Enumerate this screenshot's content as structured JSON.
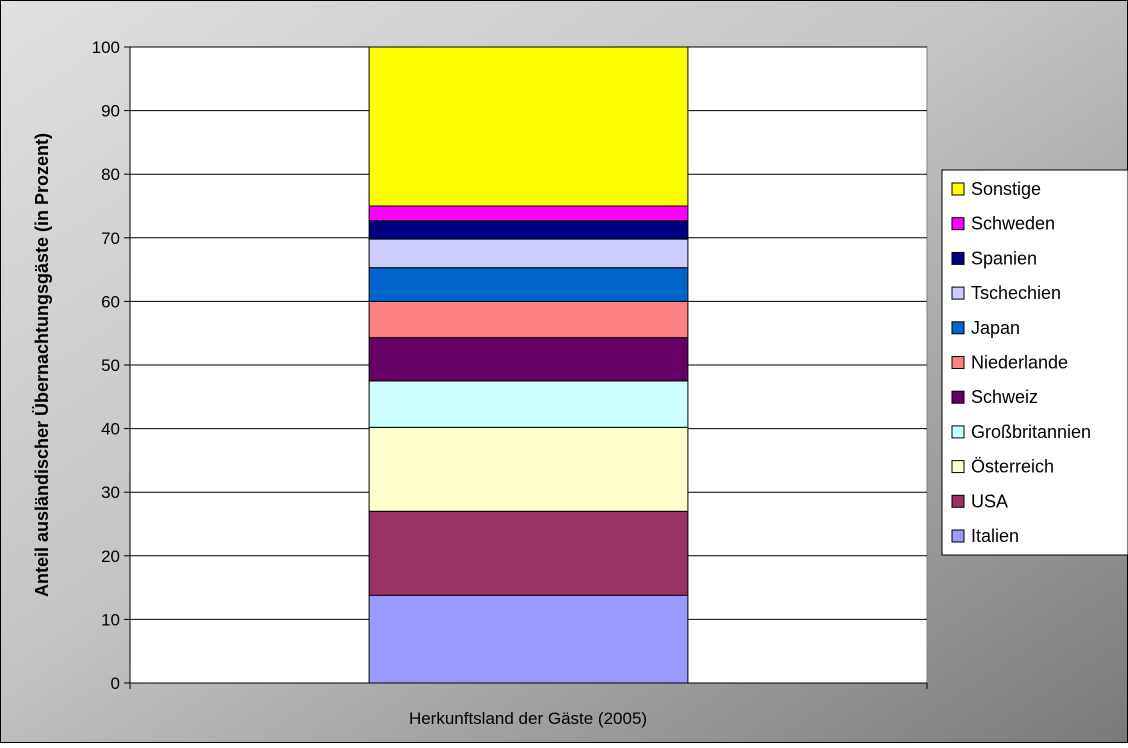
{
  "chart_data": {
    "type": "bar",
    "stacked": true,
    "categories": [
      ""
    ],
    "xlabel": "Herkunftsland der Gäste (2005)",
    "ylabel": "Anteil ausländischer Übernachtungsgäste (in Prozent)",
    "ylim": [
      0,
      100
    ],
    "yticks": [
      "0",
      "10",
      "20",
      "30",
      "40",
      "50",
      "60",
      "70",
      "80",
      "90",
      "100"
    ],
    "grid": true,
    "legend_position": "right",
    "series": [
      {
        "name": "Italien",
        "values": [
          13.8
        ],
        "color": "#9999FF"
      },
      {
        "name": "USA",
        "values": [
          13.2
        ],
        "color": "#993366"
      },
      {
        "name": "Österreich",
        "values": [
          13.2
        ],
        "color": "#FFFFCC"
      },
      {
        "name": "Großbritannien",
        "values": [
          7.3
        ],
        "color": "#CCFFFF"
      },
      {
        "name": "Schweiz",
        "values": [
          6.8
        ],
        "color": "#660066"
      },
      {
        "name": "Niederlande",
        "values": [
          5.7
        ],
        "color": "#FF8080"
      },
      {
        "name": "Japan",
        "values": [
          5.3
        ],
        "color": "#0066CC"
      },
      {
        "name": "Tschechien",
        "values": [
          4.5
        ],
        "color": "#CCCCFF"
      },
      {
        "name": "Spanien",
        "values": [
          2.9
        ],
        "color": "#000080"
      },
      {
        "name": "Schweden",
        "values": [
          2.3
        ],
        "color": "#FF00FF"
      },
      {
        "name": "Sonstige",
        "values": [
          25.0
        ],
        "color": "#FFFF00"
      }
    ],
    "colors": {
      "plot_background": "#FFFFFF",
      "gridline": "#000000"
    }
  }
}
